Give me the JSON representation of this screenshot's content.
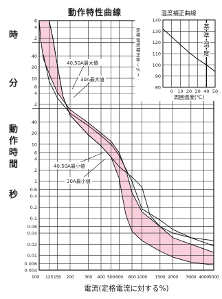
{
  "chart_data": [
    {
      "type": "area",
      "title": "動作特性曲線",
      "xlabel": "電流(定格電流に対する%)",
      "ylabel": "",
      "xscale": "log",
      "yscale": "log",
      "xlim": [
        100,
        5000
      ],
      "ylim_seconds": [
        0.004,
        21600
      ],
      "x_ticks": [
        {
          "v": 100,
          "label": "100"
        },
        {
          "v": 125,
          "label": "125"
        },
        {
          "v": 150,
          "label": "150"
        },
        {
          "v": 200,
          "label": "200"
        },
        {
          "v": 300,
          "label": "300"
        },
        {
          "v": 400,
          "label": "400"
        },
        {
          "v": 500,
          "label": "500"
        },
        {
          "v": 600,
          "label": "600"
        },
        {
          "v": 800,
          "label": "800"
        },
        {
          "v": 1000,
          "label": "1000"
        },
        {
          "v": 1500,
          "label": "1500"
        },
        {
          "v": 2000,
          "label": "2000"
        },
        {
          "v": 3000,
          "label": "3000"
        },
        {
          "v": 4000,
          "label": "4000"
        },
        {
          "v": 5000,
          "label": "5000"
        }
      ],
      "y_groups": [
        {
          "unit_label": "時",
          "ticks": [
            {
              "v": 21600,
              "label": "6"
            },
            {
              "v": 14400,
              "label": "4"
            },
            {
              "v": 7200,
              "label": "2"
            }
          ]
        },
        {
          "unit_label": "分",
          "ticks": [
            {
              "v": 2400,
              "label": "40"
            },
            {
              "v": 1200,
              "label": "20"
            },
            {
              "v": 600,
              "label": "10"
            },
            {
              "v": 360,
              "label": "6"
            },
            {
              "v": 240,
              "label": "4"
            },
            {
              "v": 120,
              "label": "2"
            }
          ]
        },
        {
          "unit_label": "秒",
          "ticks": [
            {
              "v": 40,
              "label": "40"
            },
            {
              "v": 20,
              "label": "20"
            },
            {
              "v": 10,
              "label": "10"
            },
            {
              "v": 6,
              "label": "6"
            },
            {
              "v": 4,
              "label": "4"
            },
            {
              "v": 2,
              "label": "2"
            },
            {
              "v": 1,
              "label": "1"
            },
            {
              "v": 0.6,
              "label": "0.6"
            },
            {
              "v": 0.4,
              "label": "0.4"
            },
            {
              "v": 0.2,
              "label": "0.2"
            },
            {
              "v": 0.1,
              "label": "0.1"
            },
            {
              "v": 0.06,
              "label": "0.06"
            },
            {
              "v": 0.04,
              "label": "0.04"
            },
            {
              "v": 0.02,
              "label": "0.02"
            },
            {
              "v": 0.01,
              "label": "0.01"
            },
            {
              "v": 0.006,
              "label": "0.006"
            },
            {
              "v": 0.004,
              "label": "0.004"
            }
          ]
        }
      ],
      "side_label": "動作時間",
      "band_color": "#f9cfdc",
      "series": [
        {
          "name": "40,50A最大値",
          "x": [
            100,
            104,
            110,
            125,
            150,
            200,
            300,
            400,
            500,
            600,
            700,
            800,
            1000,
            1500,
            2000,
            3000,
            5000
          ],
          "y": [
            21600,
            6000,
            2000,
            800,
            250,
            85,
            38,
            20,
            12,
            6,
            2,
            0.5,
            0.15,
            0.06,
            0.03,
            0.02,
            0.012
          ]
        },
        {
          "name": "30A最大値",
          "x": [
            110,
            125,
            150,
            200,
            300,
            400,
            500,
            600,
            800,
            1000,
            1500,
            2000,
            3000,
            5000
          ],
          "y": [
            2600,
            500,
            180,
            68,
            32,
            17,
            10,
            5,
            1,
            0.18,
            0.09,
            0.05,
            0.03,
            0.018
          ]
        },
        {
          "name": "40,50A最小値",
          "x": [
            125,
            135,
            150,
            170,
            200,
            300,
            400,
            500,
            600,
            650,
            700,
            800,
            1000,
            1500,
            2000,
            3000,
            5000
          ],
          "y": [
            21600,
            8000,
            1400,
            200,
            60,
            18,
            9,
            4.5,
            1.2,
            0.35,
            0.12,
            0.045,
            0.025,
            0.013,
            0.009,
            0.0065,
            0.0055
          ]
        },
        {
          "name": "30A最小値",
          "x": [
            125,
            135,
            150,
            170,
            200,
            300,
            400,
            500,
            600,
            800,
            1000,
            1200,
            1500,
            2000,
            3000,
            5000
          ],
          "y": [
            21600,
            8000,
            1400,
            200,
            60,
            18,
            9,
            4.5,
            2.5,
            1.3,
            0.7,
            0.12,
            0.06,
            0.04,
            0.03,
            0.025
          ]
        }
      ],
      "labels": [
        {
          "text": "40,50A最大値",
          "series": 0
        },
        {
          "text": "30A最大値",
          "series": 1
        },
        {
          "text": "40,50A最小値",
          "series": 2
        },
        {
          "text": "30A最小値",
          "series": 3
        }
      ]
    },
    {
      "type": "line",
      "title": "温度補正曲線",
      "xlabel": "周囲温度(℃)",
      "ylabel": "定格電流補正率(%)",
      "xlim": [
        -10,
        50
      ],
      "ylim": [
        80,
        140
      ],
      "x_ticks": [
        0,
        10,
        20,
        30,
        40,
        50
      ],
      "y_ticks": [
        80,
        90,
        100,
        110,
        120,
        130,
        140
      ],
      "reference_label": "基準温度",
      "reference_x": 40,
      "series": [
        {
          "x": [
            -10,
            0,
            10,
            20,
            30,
            40,
            50
          ],
          "y": [
            132,
            125,
            118,
            111,
            105,
            100,
            94
          ]
        }
      ]
    }
  ]
}
